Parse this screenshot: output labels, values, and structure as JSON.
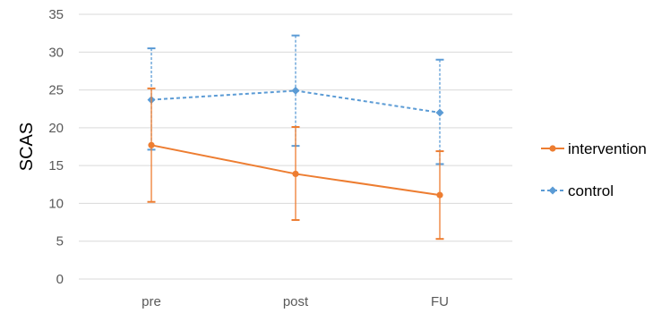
{
  "chart_data": {
    "type": "line",
    "categories": [
      "pre",
      "post",
      "FU"
    ],
    "ylabel": "SCAS",
    "xlabel": "",
    "ylim": [
      0,
      35
    ],
    "yticks": [
      0,
      5,
      10,
      15,
      20,
      25,
      30,
      35
    ],
    "grid": true,
    "legend_position": "right",
    "series": [
      {
        "name": "intervention",
        "color": "#ED7D31",
        "line_style": "solid",
        "marker": "circle",
        "values": [
          17.7,
          13.9,
          11.1
        ],
        "error_low": [
          10.2,
          7.8,
          5.3
        ],
        "error_high": [
          25.2,
          20.1,
          16.9
        ]
      },
      {
        "name": "control",
        "color": "#5B9BD5",
        "line_style": "dashed",
        "marker": "diamond",
        "values": [
          23.7,
          24.9,
          22.0
        ],
        "error_low": [
          17.1,
          17.6,
          15.2
        ],
        "error_high": [
          30.5,
          32.2,
          29.0
        ]
      }
    ]
  }
}
